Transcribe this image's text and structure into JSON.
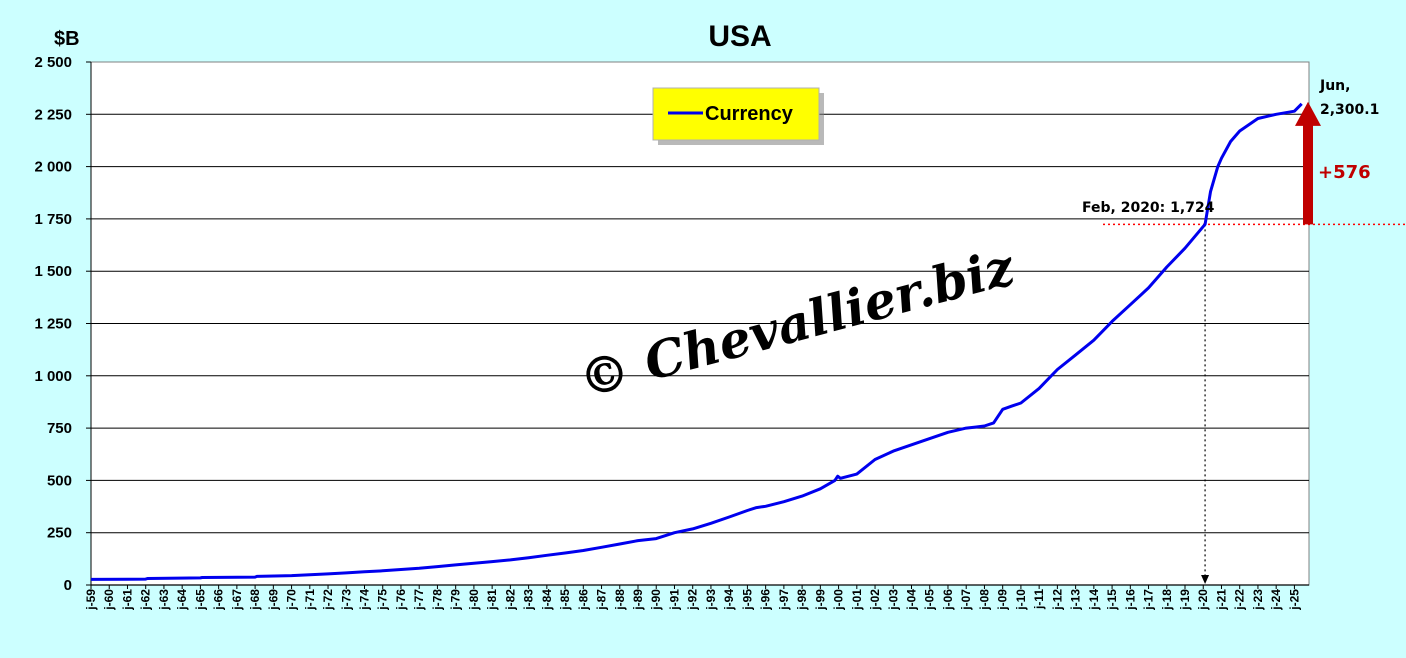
{
  "chart_data": {
    "type": "line",
    "title": "USA",
    "ylabel": "$B",
    "ylim": [
      0,
      2500
    ],
    "yticks": [
      0,
      250,
      500,
      750,
      1000,
      1250,
      1500,
      1750,
      2000,
      2250,
      2500
    ],
    "ytick_labels": [
      "0",
      "250",
      "500",
      "750",
      "1 000",
      "1 250",
      "1 500",
      "1 750",
      "2 000",
      "2 250",
      "2 500"
    ],
    "xlim": [
      1959.0,
      2025.8
    ],
    "xtick_labels": [
      "j-59",
      "j-60",
      "j-61",
      "j-62",
      "j-63",
      "j-64",
      "j-65",
      "j-66",
      "j-67",
      "j-68",
      "j-69",
      "j-70",
      "j-71",
      "j-72",
      "j-73",
      "j-74",
      "j-75",
      "j-76",
      "j-77",
      "j-78",
      "j-79",
      "j-80",
      "j-81",
      "j-82",
      "j-83",
      "j-84",
      "j-85",
      "j-86",
      "j-87",
      "j-88",
      "j-89",
      "j-90",
      "j-91",
      "j-92",
      "j-93",
      "j-94",
      "j-95",
      "j-96",
      "j-97",
      "j-98",
      "j-99",
      "j-00",
      "j-01",
      "j-02",
      "j-03",
      "j-04",
      "j-05",
      "j-06",
      "j-07",
      "j-08",
      "j-09",
      "j-10",
      "j-11",
      "j-12",
      "j-13",
      "j-14",
      "j-15",
      "j-16",
      "j-17",
      "j-18",
      "j-19",
      "j-20",
      "j-21",
      "j-22",
      "j-23",
      "j-24",
      "j-25"
    ],
    "grid": true,
    "legend_position": "top-center",
    "series": [
      {
        "name": "Currency",
        "color": "#0000ee",
        "x": [
          1959,
          1962,
          1962.1,
          1965,
          1965.1,
          1968,
          1968.1,
          1970,
          1971,
          1972,
          1973,
          1974,
          1975,
          1976,
          1977,
          1978,
          1979,
          1980,
          1981,
          1982,
          1983,
          1984,
          1985,
          1986,
          1987,
          1988,
          1989,
          1990,
          1991,
          1992,
          1993,
          1994,
          1995,
          1995.5,
          1996,
          1997,
          1998,
          1999,
          1999.8,
          1999.95,
          2000.1,
          2001,
          2002,
          2003,
          2004,
          2005,
          2006,
          2007,
          2007.5,
          2008,
          2008.5,
          2009,
          2009.5,
          2010,
          2011,
          2012,
          2013,
          2014,
          2015,
          2016,
          2017,
          2018,
          2019,
          2020.1,
          2020.4,
          2020.8,
          2021,
          2021.5,
          2022,
          2023,
          2024,
          2025,
          2025.4
        ],
        "y": [
          27,
          28,
          31,
          34,
          36,
          38,
          41,
          45,
          49,
          53,
          58,
          63,
          68,
          74,
          80,
          88,
          96,
          104,
          112,
          120,
          130,
          142,
          153,
          165,
          180,
          196,
          212,
          222,
          250,
          268,
          295,
          325,
          356,
          370,
          376,
          398,
          425,
          460,
          500,
          520,
          510,
          530,
          600,
          640,
          670,
          700,
          730,
          750,
          755,
          760,
          775,
          840,
          855,
          870,
          940,
          1030,
          1100,
          1170,
          1260,
          1340,
          1420,
          1520,
          1610,
          1724,
          1880,
          2000,
          2040,
          2120,
          2170,
          2230,
          2250,
          2265,
          2300
        ]
      }
    ],
    "annotations": {
      "end_label_line1": "Jun,",
      "end_label_line2": "2,300.1",
      "increase_label": "+576",
      "feb_label": "Feb, 2020: 1,724",
      "feb_x": 2020.1,
      "feb_y": 1724
    },
    "watermark": "© Chevallier.biz",
    "colors": {
      "background": "#ccffff",
      "plot_bg": "#ffffff",
      "legend_bg": "#ffff00",
      "arrow": "#c00000",
      "ref_line": "#ff0000"
    }
  }
}
